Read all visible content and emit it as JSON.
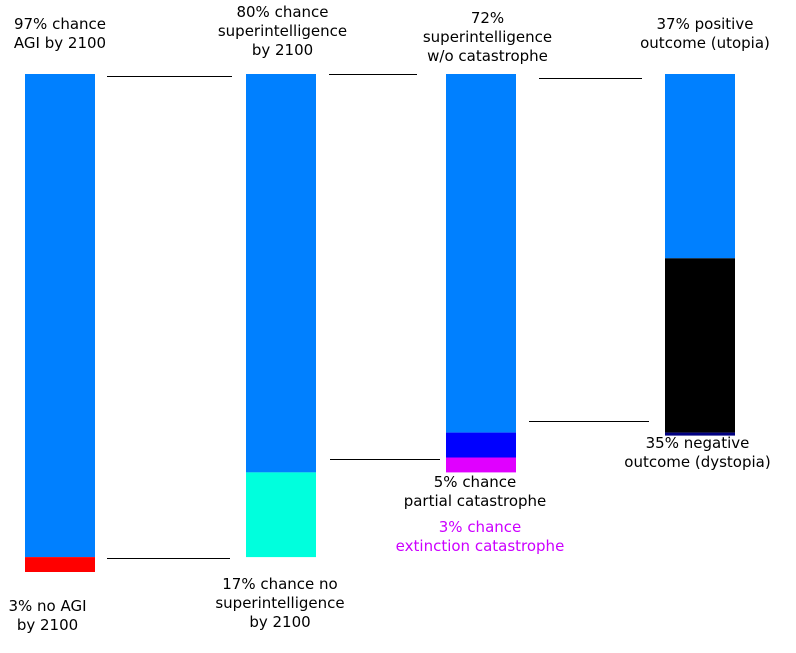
{
  "chart_data": {
    "type": "bar",
    "stacked": true,
    "colors": {
      "blue": "#0080ff",
      "red": "#ff0000",
      "cyan": "#00ffdd",
      "deep_blue": "#0000ff",
      "magenta": "#e000ff",
      "black": "#000000",
      "dark_navy": "#000080",
      "line": "#000000",
      "magenta_text": "#cc00ff"
    },
    "bars": [
      {
        "name": "agi",
        "segments": [
          {
            "value": 97,
            "color": "blue"
          },
          {
            "value": 3,
            "color": "red"
          }
        ]
      },
      {
        "name": "superintelligence",
        "segments": [
          {
            "value": 80,
            "color": "blue"
          },
          {
            "value": 17,
            "color": "cyan"
          }
        ]
      },
      {
        "name": "catastrophe",
        "segments": [
          {
            "value": 72,
            "color": "blue"
          },
          {
            "value": 5,
            "color": "deep_blue"
          },
          {
            "value": 3,
            "color": "magenta"
          }
        ]
      },
      {
        "name": "outcome",
        "segments": [
          {
            "value": 37,
            "color": "blue"
          },
          {
            "value": 35,
            "color": "black"
          },
          {
            "value": 0.6,
            "color": "dark_navy"
          }
        ]
      }
    ],
    "labels": {
      "agi_yes": "97% chance\nAGI by 2100",
      "agi_no": "3% no AGI\nby 2100",
      "si_yes": "80% chance\nsuperintelligence\nby 2100",
      "si_no": "17% chance no\nsuperintelligence\nby 2100",
      "cat_none": "72%\nsuperintelligence\nw/o catastrophe",
      "cat_partial": "5% chance\npartial catastrophe",
      "cat_extinct": "3% chance\nextinction catastrophe",
      "out_pos": "37% positive\noutcome (utopia)",
      "out_neg": "35% negative\noutcome (dystopia)"
    }
  }
}
